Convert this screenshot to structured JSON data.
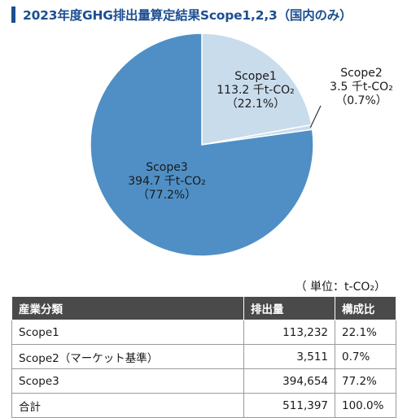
{
  "title": "2023年度GHG排出量算定結果Scope1,2,3（国内のみ）",
  "chart_data": {
    "type": "pie",
    "unit": "千t-CO₂",
    "slices": [
      {
        "name": "Scope1",
        "value": 113.2,
        "value_label": "113.2 千t-CO₂",
        "pct_label": "（22.1%）",
        "color": "#c9dcec"
      },
      {
        "name": "Scope2",
        "value": 3.5,
        "value_label": "3.5 千t-CO₂",
        "pct_label": "（0.7%）",
        "color": "#c9dcec"
      },
      {
        "name": "Scope3",
        "value": 394.7,
        "value_label": "394.7 千t-CO₂",
        "pct_label": "（77.2%）",
        "color": "#4f8fc5"
      }
    ]
  },
  "unit_note": "（ 単位：t-CO₂）",
  "table": {
    "headers": [
      "産業分類",
      "排出量",
      "構成比"
    ],
    "rows": [
      [
        "Scope1",
        "113,232",
        "22.1%"
      ],
      [
        "Scope2（マーケット基準）",
        "3,511",
        "0.7%"
      ],
      [
        "Scope3",
        "394,654",
        "77.2%"
      ],
      [
        "合計",
        "511,397",
        "100.0%"
      ]
    ]
  }
}
